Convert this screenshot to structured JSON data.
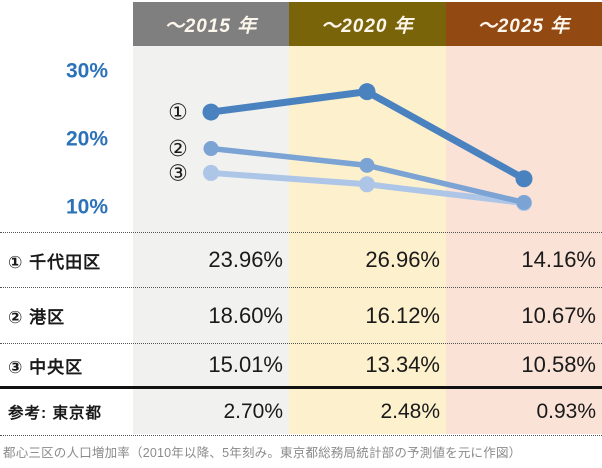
{
  "header": {
    "columns": [
      "～2015 年",
      "～2020 年",
      "～2025 年"
    ]
  },
  "chart_data": {
    "type": "line",
    "title": "",
    "xlabel": "",
    "ylabel": "",
    "x_categories": [
      "～2015 年",
      "～2020 年",
      "～2025 年"
    ],
    "yticks": [
      30,
      20,
      10
    ],
    "ytick_labels": [
      "30%",
      "20%",
      "10%"
    ],
    "ylim": [
      8.5,
      33
    ],
    "grid": false,
    "legend_position": "circled-markers-left-of-first-point",
    "series": [
      {
        "name": "千代田区",
        "marker": "①",
        "values": [
          23.96,
          26.96,
          14.16
        ],
        "color": "#4a82c0"
      },
      {
        "name": "港区",
        "marker": "②",
        "values": [
          18.6,
          16.12,
          10.67
        ],
        "color": "#7ba3d4"
      },
      {
        "name": "中央区",
        "marker": "③",
        "values": [
          15.01,
          13.34,
          10.58
        ],
        "color": "#adc6e8"
      }
    ]
  },
  "table": {
    "rows": [
      {
        "label": "① 千代田区",
        "values": [
          "23.96%",
          "26.96%",
          "14.16%"
        ]
      },
      {
        "label": "② 港区",
        "values": [
          "18.60%",
          "16.12%",
          "10.67%"
        ]
      },
      {
        "label": "③ 中央区",
        "values": [
          "15.01%",
          "13.34%",
          "10.58%"
        ]
      },
      {
        "label": "参考: 東京都",
        "values": [
          "2.70%",
          "2.48%",
          "0.93%"
        ]
      }
    ]
  },
  "caption": "都心三区の人口増加率（2010年以降、5年刻み。東京都総務局統計部の予測値を元に作図）",
  "colors": {
    "header_bg": [
      "#7f7f7f",
      "#7a640a",
      "#924a12"
    ],
    "column_bg": [
      "#f1f1ef",
      "#fdf0cc",
      "#fae2d6"
    ],
    "axis_label": "#2b72b8",
    "caption_text": "#8b8b8b"
  }
}
